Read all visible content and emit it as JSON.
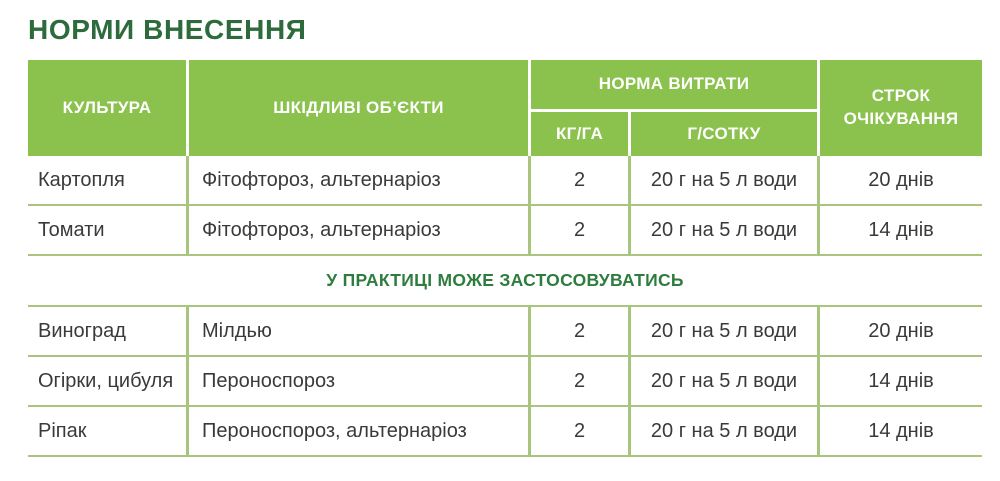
{
  "title": "НОРМИ ВНЕСЕННЯ",
  "colors": {
    "header_bg": "#8bc14d",
    "title": "#2d6b3c",
    "divider": "#a8c47d",
    "body_text": "#3a3a3a",
    "section_text": "#2e7d3e"
  },
  "table": {
    "header": {
      "culture": "КУЛЬТУРА",
      "harmful_objects": "ШКІДЛИВІ ОБ’ЄКТИ",
      "rate_group": "НОРМА ВИТРАТИ",
      "rate_kg_ha": "КГ/ГА",
      "rate_g_sotka": "Г/СОТКУ",
      "waiting_period": "СТРОК ОЧІКУВАННЯ"
    },
    "section_label": "У ПРАКТИЦІ МОЖЕ ЗАСТОСОВУВАТИСЬ",
    "rows": [
      {
        "culture": "Картопля",
        "objects": "Фітофтороз, альтернаріоз",
        "kg_ha": "2",
        "g_sotka": "20 г на 5 л води",
        "waiting": "20 днів"
      },
      {
        "culture": "Томати",
        "objects": "Фітофтороз, альтернаріоз",
        "kg_ha": "2",
        "g_sotka": "20 г на 5 л води",
        "waiting": "14 днів"
      },
      {
        "culture": "Виноград",
        "objects": "Мілдью",
        "kg_ha": "2",
        "g_sotka": "20 г на 5 л води",
        "waiting": "20 днів"
      },
      {
        "culture": "Огірки, цибуля",
        "objects": "Пероноспороз",
        "kg_ha": "2",
        "g_sotka": "20 г на 5 л води",
        "waiting": "14 днів"
      },
      {
        "culture": "Ріпак",
        "objects": "Пероноспороз, альтернаріоз",
        "kg_ha": "2",
        "g_sotka": "20 г на 5 л води",
        "waiting": "14 днів"
      }
    ]
  }
}
